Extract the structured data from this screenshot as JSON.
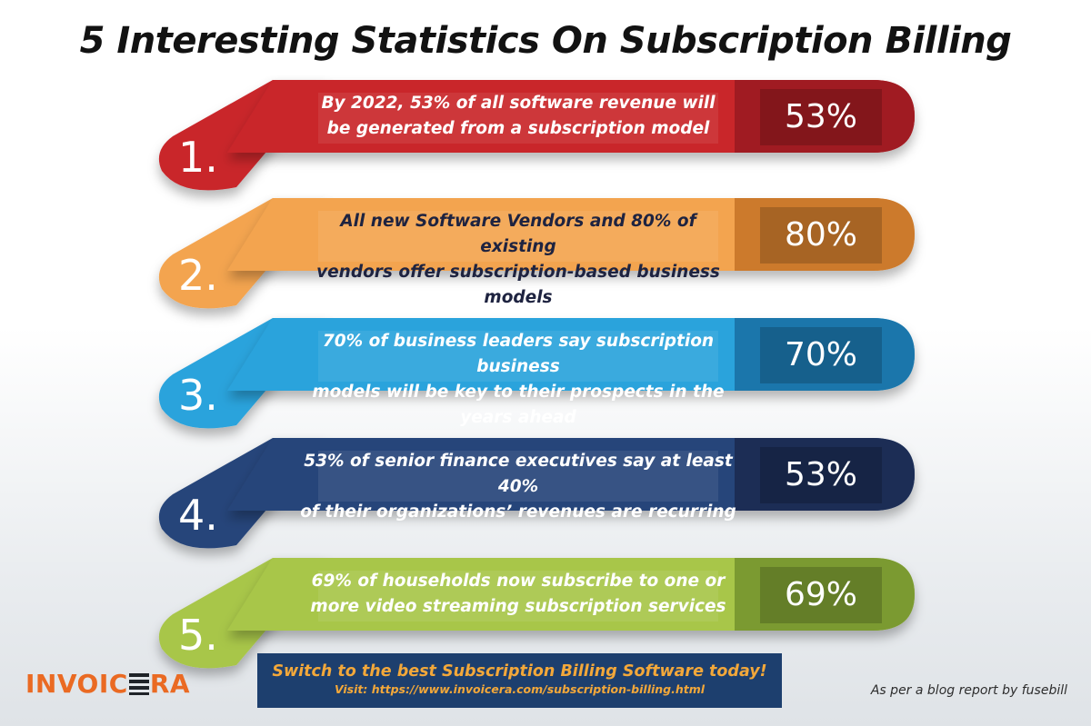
{
  "title": "5 Interesting Statistics On Subscription Billing",
  "stats": [
    {
      "number": "1.",
      "text_line1": "By 2022, 53% of all software revenue will",
      "text_line2": "be generated from a subscription model",
      "percent": "53%",
      "color": "#c9252c",
      "dark": "#a01b22"
    },
    {
      "number": "2.",
      "text_line1": "All new Software Vendors and 80% of existing",
      "text_line2": "vendors offer subscription-based business models",
      "percent": "80%",
      "color": "#f3a450",
      "dark": "#cc7a2c"
    },
    {
      "number": "3.",
      "text_line1": "70% of business leaders say subscription business",
      "text_line2": "models will be key to their prospects in the years ahead",
      "percent": "70%",
      "color": "#2aa3dc",
      "dark": "#1b76ab"
    },
    {
      "number": "4.",
      "text_line1": "53% of senior finance executives say at least 40%",
      "text_line2": "of their organizations’ revenues are recurring",
      "percent": "53%",
      "color": "#28457a",
      "dark": "#1c2d55"
    },
    {
      "number": "5.",
      "text_line1": "69% of households now subscribe to one or",
      "text_line2": "more video streaming subscription services",
      "percent": "69%",
      "color": "#a8c64a",
      "dark": "#7b9a31"
    }
  ],
  "cta": {
    "headline": "Switch to the best Subscription Billing Software today!",
    "visit": "Visit: https://www.invoicera.com/subscription-billing.html"
  },
  "logo": {
    "left": "INVOIC",
    "right": "RA"
  },
  "source": "As per a blog report by fusebill"
}
